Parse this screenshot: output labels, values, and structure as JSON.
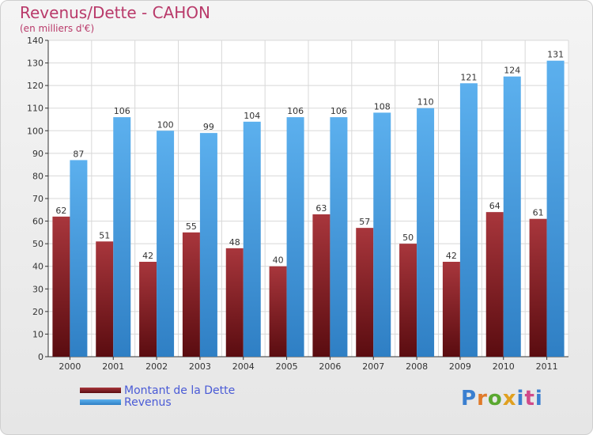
{
  "title": "Revenus/Dette - CAHON",
  "subtitle": "(en milliers d'€)",
  "logo": {
    "text": "Proxiti",
    "letter_colors": [
      "#3a7fd0",
      "#e07a2a",
      "#5aa830",
      "#e0a020",
      "#3a7fd0",
      "#d04a8a",
      "#3a7fd0"
    ]
  },
  "colors": {
    "dette": "#7a1e22",
    "revenus": "#4aa0e0",
    "title": "#b93a6a",
    "legend_text": "#4a5bd6"
  },
  "chart_data": {
    "type": "bar",
    "title": "Revenus/Dette - CAHON",
    "subtitle": "(en milliers d'€)",
    "categories": [
      "2000",
      "2001",
      "2002",
      "2003",
      "2004",
      "2005",
      "2006",
      "2007",
      "2008",
      "2009",
      "2010",
      "2011"
    ],
    "series": [
      {
        "name": "Montant de la Dette",
        "color": "#7a1e22",
        "values": [
          62,
          51,
          42,
          55,
          48,
          40,
          63,
          57,
          50,
          42,
          64,
          61
        ]
      },
      {
        "name": "Revenus",
        "color": "#4aa0e0",
        "values": [
          87,
          106,
          100,
          99,
          104,
          106,
          106,
          108,
          110,
          121,
          124,
          131
        ]
      }
    ],
    "ylim": [
      0,
      140
    ],
    "yticks": [
      0,
      10,
      20,
      30,
      40,
      50,
      60,
      70,
      80,
      90,
      100,
      110,
      120,
      130,
      140
    ],
    "grid": true,
    "legend_position": "bottom-left",
    "data_labels": true
  }
}
